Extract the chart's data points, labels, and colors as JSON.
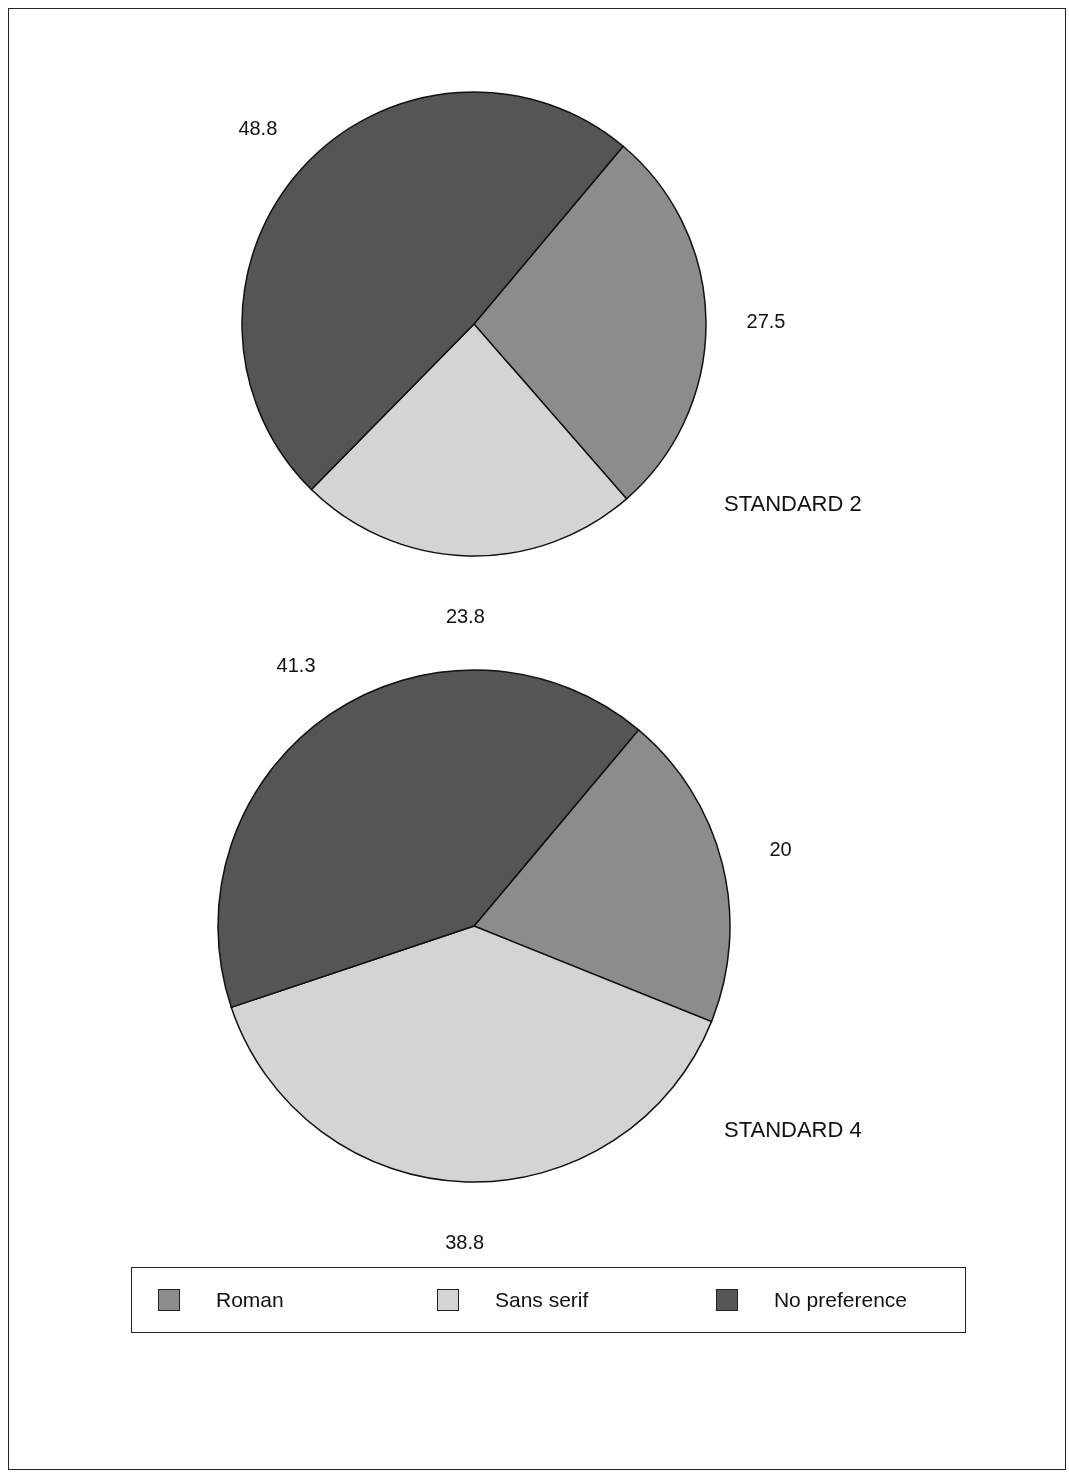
{
  "chart_data": [
    {
      "type": "pie",
      "title": "STANDARD 2",
      "categories": [
        null,
        null,
        null
      ],
      "values": [
        27.5,
        23.8,
        48.8
      ],
      "colors": [
        "#8c8c8c",
        "#d4d4d4",
        "#555555"
      ],
      "data_labels": true
    },
    {
      "type": "pie",
      "title": "STANDARD 4",
      "categories": [
        "Roman",
        "Sans serif",
        "No preference"
      ],
      "values": [
        20,
        38.8,
        41.3
      ],
      "colors": [
        "#8c8c8c",
        "#d4d4d4",
        "#555555"
      ],
      "data_labels": true,
      "legend": "bottom"
    }
  ]
}
